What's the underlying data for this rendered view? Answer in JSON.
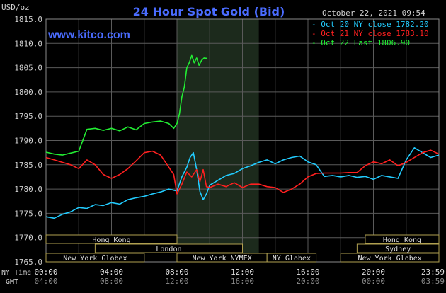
{
  "header": {
    "unit": "USD/oz",
    "title": "24 Hour Spot Gold (Bid)",
    "timestamp": "October 22, 2021 09:54",
    "site": "www.kitco.com"
  },
  "colors": {
    "background": "#000000",
    "grid": "#5a5a5a",
    "title": "#4a6cff",
    "site": "#4a6cff",
    "text": "#cfcfcf",
    "session_shade": "#1c2a1c",
    "market_box_border": "#b0a050",
    "market_text": "#e0e0e0"
  },
  "chart_data": {
    "type": "line",
    "ylim": [
      1765.0,
      1815.0
    ],
    "yticks": [
      "1815.0",
      "1810.0",
      "1805.0",
      "1800.0",
      "1795.0",
      "1790.0",
      "1785.0",
      "1780.0",
      "1775.0",
      "1770.0",
      "1765.0"
    ],
    "xlim_hours": [
      0,
      24
    ],
    "xticks_ny": [
      "00:00",
      "04:00",
      "08:00",
      "12:00",
      "16:00",
      "20:00",
      "23:59"
    ],
    "xticks_gmt": [
      "04:00",
      "08:00",
      "12:00",
      "16:00",
      "20:00",
      "00:00",
      "03:59"
    ],
    "xlabel_ny": "NY Time",
    "xlabel_gmt": "GMT",
    "session_highlight_hours": [
      8.0,
      13.0
    ],
    "series": [
      {
        "name": "Oct 20 NY close 1782.20",
        "color": "#22ccff",
        "points": [
          [
            0,
            1774.3
          ],
          [
            0.5,
            1774.0
          ],
          [
            1,
            1774.8
          ],
          [
            1.5,
            1775.3
          ],
          [
            2,
            1776.2
          ],
          [
            2.5,
            1776.0
          ],
          [
            3,
            1776.8
          ],
          [
            3.5,
            1776.6
          ],
          [
            4,
            1777.2
          ],
          [
            4.5,
            1776.9
          ],
          [
            5,
            1777.8
          ],
          [
            5.5,
            1778.2
          ],
          [
            6,
            1778.5
          ],
          [
            6.5,
            1779.0
          ],
          [
            7,
            1779.4
          ],
          [
            7.5,
            1780.0
          ],
          [
            8,
            1779.6
          ],
          [
            8.3,
            1782.5
          ],
          [
            8.6,
            1784.5
          ],
          [
            8.8,
            1786.5
          ],
          [
            9.0,
            1787.5
          ],
          [
            9.2,
            1784.0
          ],
          [
            9.4,
            1779.5
          ],
          [
            9.6,
            1777.8
          ],
          [
            9.8,
            1779.0
          ],
          [
            10,
            1780.8
          ],
          [
            10.5,
            1781.8
          ],
          [
            11,
            1782.8
          ],
          [
            11.5,
            1783.2
          ],
          [
            12,
            1784.2
          ],
          [
            12.5,
            1784.8
          ],
          [
            13,
            1785.5
          ],
          [
            13.5,
            1786.0
          ],
          [
            14,
            1785.2
          ],
          [
            14.5,
            1786.0
          ],
          [
            15,
            1786.5
          ],
          [
            15.5,
            1786.8
          ],
          [
            16,
            1785.6
          ],
          [
            16.5,
            1785.0
          ],
          [
            17,
            1782.6
          ],
          [
            17.5,
            1782.8
          ],
          [
            18,
            1782.5
          ],
          [
            18.5,
            1782.8
          ],
          [
            19,
            1782.4
          ],
          [
            19.5,
            1782.6
          ],
          [
            20,
            1782.0
          ],
          [
            20.5,
            1782.8
          ],
          [
            21,
            1782.5
          ],
          [
            21.5,
            1782.2
          ],
          [
            22,
            1786.0
          ],
          [
            22.5,
            1788.5
          ],
          [
            23,
            1787.5
          ],
          [
            23.5,
            1786.5
          ],
          [
            23.99,
            1787.0
          ]
        ]
      },
      {
        "name": "Oct 21 NY close 1783.10",
        "color": "#ff2020",
        "points": [
          [
            0,
            1786.5
          ],
          [
            0.5,
            1786.0
          ],
          [
            1,
            1785.5
          ],
          [
            1.5,
            1785.0
          ],
          [
            2,
            1784.2
          ],
          [
            2.5,
            1786.0
          ],
          [
            3,
            1785.0
          ],
          [
            3.5,
            1783.0
          ],
          [
            4,
            1782.2
          ],
          [
            4.5,
            1783.0
          ],
          [
            5,
            1784.2
          ],
          [
            5.5,
            1785.8
          ],
          [
            6,
            1787.5
          ],
          [
            6.5,
            1787.8
          ],
          [
            7,
            1787.0
          ],
          [
            7.5,
            1784.5
          ],
          [
            7.8,
            1783.0
          ],
          [
            8.0,
            1779.0
          ],
          [
            8.3,
            1781.0
          ],
          [
            8.6,
            1783.5
          ],
          [
            8.9,
            1782.5
          ],
          [
            9.2,
            1784.0
          ],
          [
            9.4,
            1781.5
          ],
          [
            9.6,
            1784.0
          ],
          [
            9.8,
            1780.5
          ],
          [
            10,
            1780.3
          ],
          [
            10.5,
            1781.0
          ],
          [
            11,
            1780.5
          ],
          [
            11.5,
            1781.3
          ],
          [
            12,
            1780.3
          ],
          [
            12.5,
            1781.0
          ],
          [
            13,
            1781.0
          ],
          [
            13.5,
            1780.5
          ],
          [
            14,
            1780.3
          ],
          [
            14.5,
            1779.3
          ],
          [
            15,
            1780.0
          ],
          [
            15.5,
            1781.0
          ],
          [
            16,
            1782.5
          ],
          [
            16.5,
            1783.2
          ],
          [
            17,
            1783.3
          ],
          [
            17.5,
            1783.3
          ],
          [
            18,
            1783.3
          ],
          [
            18.5,
            1783.4
          ],
          [
            19,
            1783.4
          ],
          [
            19.5,
            1784.8
          ],
          [
            20,
            1785.6
          ],
          [
            20.5,
            1785.2
          ],
          [
            21,
            1786.0
          ],
          [
            21.5,
            1784.8
          ],
          [
            22,
            1785.5
          ],
          [
            22.5,
            1786.5
          ],
          [
            23,
            1787.5
          ],
          [
            23.5,
            1788.0
          ],
          [
            23.99,
            1787.2
          ]
        ]
      },
      {
        "name": "Oct 22 Last 1806.90",
        "color": "#22ee33",
        "points": [
          [
            0,
            1787.6
          ],
          [
            0.5,
            1787.2
          ],
          [
            1,
            1787.0
          ],
          [
            1.5,
            1787.4
          ],
          [
            2,
            1787.8
          ],
          [
            2.5,
            1792.3
          ],
          [
            3,
            1792.5
          ],
          [
            3.5,
            1792.1
          ],
          [
            4,
            1792.5
          ],
          [
            4.5,
            1792.0
          ],
          [
            5,
            1792.8
          ],
          [
            5.5,
            1792.2
          ],
          [
            6,
            1793.5
          ],
          [
            6.5,
            1793.8
          ],
          [
            7,
            1794.0
          ],
          [
            7.5,
            1793.5
          ],
          [
            7.8,
            1792.5
          ],
          [
            8.0,
            1793.5
          ],
          [
            8.15,
            1795.5
          ],
          [
            8.3,
            1799.0
          ],
          [
            8.45,
            1801.0
          ],
          [
            8.6,
            1805.0
          ],
          [
            8.75,
            1806.0
          ],
          [
            8.9,
            1807.5
          ],
          [
            9.05,
            1806.0
          ],
          [
            9.2,
            1807.0
          ],
          [
            9.35,
            1805.5
          ],
          [
            9.5,
            1806.5
          ],
          [
            9.65,
            1807.0
          ],
          [
            9.85,
            1806.9
          ]
        ]
      }
    ],
    "market_sessions": [
      {
        "name": "Hong Kong",
        "start": 0.0,
        "end": 8.0,
        "row": 0
      },
      {
        "name": "London",
        "start": 3.0,
        "end": 12.0,
        "row": 1
      },
      {
        "name": "New York Globex",
        "start": 0.0,
        "end": 6.0,
        "row": 2
      },
      {
        "name": "New York NYMEX",
        "start": 8.0,
        "end": 13.5,
        "row": 2
      },
      {
        "name": "NY Globex",
        "start": 13.5,
        "end": 16.5,
        "row": 2
      },
      {
        "name": "Hong Kong",
        "start": 19.5,
        "end": 24.0,
        "row": 0
      },
      {
        "name": "Sydney",
        "start": 19.0,
        "end": 24.0,
        "row": 1
      },
      {
        "name": "New York Globex",
        "start": 18.0,
        "end": 24.0,
        "row": 2
      }
    ]
  }
}
